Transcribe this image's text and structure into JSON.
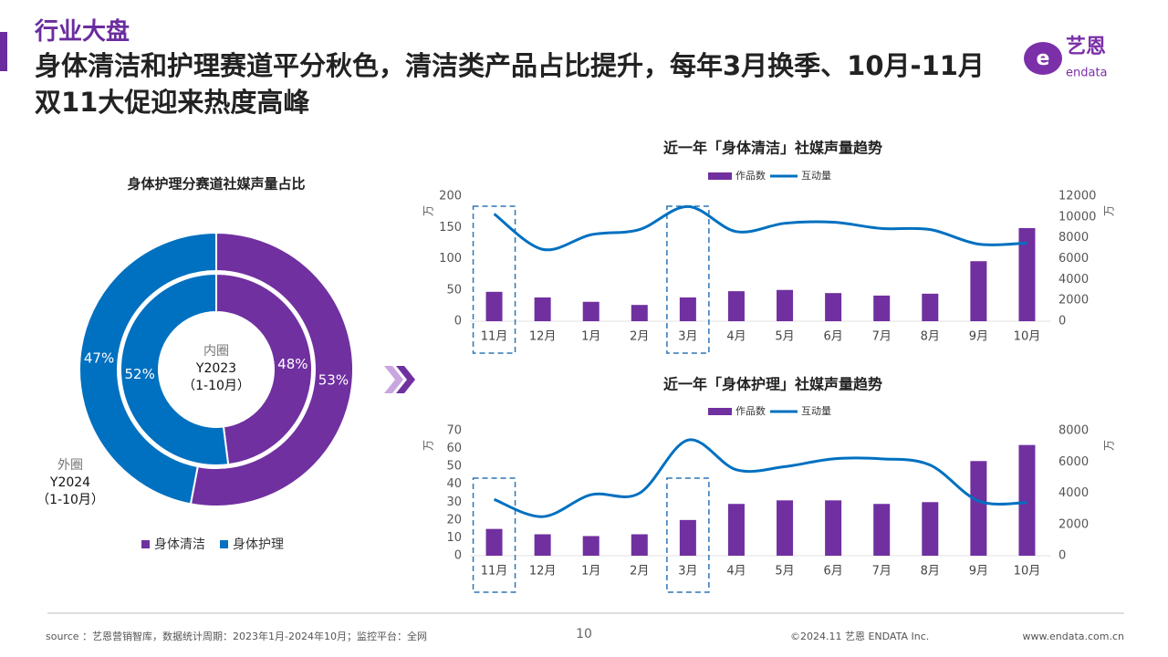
{
  "header": {
    "section": "行业大盘",
    "title": "身体清洁和护理赛道平分秋色，清洁类产品占比提升，每年3月换季、10月-11月双11大促迎来热度高峰"
  },
  "logo": {
    "name": "艺恩",
    "brand": "endata"
  },
  "footer": {
    "source": "source ：艺恩营销智库，数据统计周期：2023年1月-2024年10月；监控平台：全网",
    "page": "10",
    "copyright": "©2024.11  艺恩 ENDATA Inc.",
    "url": "www.endata.com.cn"
  },
  "chart_data": [
    {
      "type": "donut",
      "title": "身体护理分赛道社媒声量占比",
      "categories": [
        "身体清洁",
        "身体护理"
      ],
      "colors": [
        "#7030a0",
        "#0070c0"
      ],
      "rings": [
        {
          "name": "内圈",
          "period": "Y2023",
          "range": "（1-10月）",
          "values": [
            48,
            52
          ],
          "value_labels": [
            "48%",
            "52%"
          ]
        },
        {
          "name": "外圈",
          "period": "Y2024",
          "range": "（1-10月）",
          "values": [
            53,
            47
          ],
          "value_labels": [
            "53%",
            "47%"
          ]
        }
      ]
    },
    {
      "type": "combo",
      "title": "近一年「身体清洁」社媒声量趋势",
      "categories": [
        "11月",
        "12月",
        "1月",
        "2月",
        "3月",
        "4月",
        "5月",
        "6月",
        "7月",
        "8月",
        "9月",
        "10月"
      ],
      "series": [
        {
          "name": "作品数",
          "kind": "bar",
          "color": "#7030a0",
          "values": [
            47,
            38,
            31,
            26,
            38,
            48,
            50,
            45,
            41,
            44,
            96,
            149
          ]
        },
        {
          "name": "互动量",
          "kind": "line",
          "color": "#0070c0",
          "axis": "y2",
          "values": [
            10300,
            6900,
            8300,
            8800,
            11000,
            8600,
            9400,
            9500,
            8900,
            8800,
            7400,
            7500
          ]
        }
      ],
      "ylim": [
        0,
        200
      ],
      "yticks": [
        0,
        50,
        100,
        150,
        200
      ],
      "y2lim": [
        0,
        12000
      ],
      "y2ticks": [
        0,
        2000,
        4000,
        6000,
        8000,
        10000,
        12000
      ],
      "y_unit": "万",
      "y2_unit": "万",
      "highlight": [
        0,
        4
      ]
    },
    {
      "type": "combo",
      "title": "近一年「身体护理」社媒声量趋势",
      "categories": [
        "11月",
        "12月",
        "1月",
        "2月",
        "3月",
        "4月",
        "5月",
        "6月",
        "7月",
        "8月",
        "9月",
        "10月"
      ],
      "series": [
        {
          "name": "作品数",
          "kind": "bar",
          "color": "#7030a0",
          "values": [
            15,
            12,
            11,
            12,
            20,
            29,
            31,
            31,
            29,
            30,
            53,
            62
          ]
        },
        {
          "name": "互动量",
          "kind": "line",
          "color": "#0070c0",
          "axis": "y2",
          "values": [
            3600,
            2500,
            3900,
            4000,
            7400,
            5500,
            5700,
            6200,
            6200,
            5800,
            3500,
            3400
          ]
        }
      ],
      "ylim": [
        0,
        70
      ],
      "yticks": [
        0,
        10,
        20,
        30,
        40,
        50,
        60,
        70
      ],
      "y2lim": [
        0,
        8000
      ],
      "y2ticks": [
        0,
        2000,
        4000,
        6000,
        8000
      ],
      "y_unit": "万",
      "y2_unit": "万",
      "highlight": [
        0,
        4
      ]
    }
  ]
}
